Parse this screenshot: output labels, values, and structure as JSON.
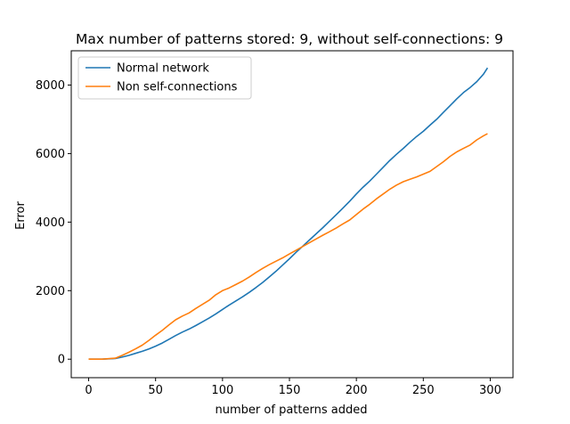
{
  "chart_data": {
    "type": "line",
    "title": "Max number of patterns stored: 9, without self-connections: 9",
    "xlabel": "number of patterns added",
    "ylabel": "Error",
    "xlim": [
      -13,
      317
    ],
    "ylim": [
      -540,
      9000
    ],
    "xticks": [
      0,
      50,
      100,
      150,
      200,
      250,
      300
    ],
    "yticks": [
      0,
      2000,
      4000,
      6000,
      8000
    ],
    "grid": false,
    "legend_position": "top-left",
    "series": [
      {
        "name": "Normal network",
        "color": "#1f77b4",
        "points": [
          [
            0,
            0
          ],
          [
            10,
            0
          ],
          [
            20,
            20
          ],
          [
            25,
            60
          ],
          [
            30,
            110
          ],
          [
            35,
            170
          ],
          [
            40,
            230
          ],
          [
            45,
            300
          ],
          [
            50,
            380
          ],
          [
            55,
            470
          ],
          [
            60,
            580
          ],
          [
            65,
            690
          ],
          [
            70,
            790
          ],
          [
            75,
            880
          ],
          [
            80,
            980
          ],
          [
            85,
            1090
          ],
          [
            90,
            1200
          ],
          [
            95,
            1320
          ],
          [
            100,
            1450
          ],
          [
            105,
            1580
          ],
          [
            110,
            1700
          ],
          [
            115,
            1820
          ],
          [
            120,
            1950
          ],
          [
            125,
            2090
          ],
          [
            130,
            2240
          ],
          [
            135,
            2400
          ],
          [
            140,
            2570
          ],
          [
            145,
            2750
          ],
          [
            150,
            2930
          ],
          [
            155,
            3120
          ],
          [
            160,
            3300
          ],
          [
            165,
            3480
          ],
          [
            170,
            3660
          ],
          [
            175,
            3840
          ],
          [
            180,
            4030
          ],
          [
            185,
            4220
          ],
          [
            190,
            4410
          ],
          [
            195,
            4610
          ],
          [
            200,
            4820
          ],
          [
            205,
            5020
          ],
          [
            210,
            5200
          ],
          [
            215,
            5400
          ],
          [
            220,
            5600
          ],
          [
            225,
            5800
          ],
          [
            230,
            5980
          ],
          [
            235,
            6150
          ],
          [
            240,
            6330
          ],
          [
            245,
            6500
          ],
          [
            250,
            6650
          ],
          [
            255,
            6830
          ],
          [
            260,
            7000
          ],
          [
            265,
            7200
          ],
          [
            270,
            7400
          ],
          [
            275,
            7600
          ],
          [
            280,
            7780
          ],
          [
            285,
            7930
          ],
          [
            290,
            8100
          ],
          [
            295,
            8320
          ],
          [
            298,
            8500
          ]
        ]
      },
      {
        "name": "Non self-connections",
        "color": "#ff7f0e",
        "points": [
          [
            0,
            0
          ],
          [
            10,
            0
          ],
          [
            20,
            30
          ],
          [
            25,
            110
          ],
          [
            30,
            200
          ],
          [
            35,
            300
          ],
          [
            40,
            410
          ],
          [
            45,
            550
          ],
          [
            50,
            700
          ],
          [
            55,
            840
          ],
          [
            60,
            1000
          ],
          [
            65,
            1150
          ],
          [
            70,
            1260
          ],
          [
            75,
            1350
          ],
          [
            80,
            1480
          ],
          [
            85,
            1600
          ],
          [
            90,
            1720
          ],
          [
            95,
            1880
          ],
          [
            100,
            2000
          ],
          [
            105,
            2080
          ],
          [
            110,
            2180
          ],
          [
            115,
            2280
          ],
          [
            120,
            2400
          ],
          [
            125,
            2530
          ],
          [
            130,
            2650
          ],
          [
            135,
            2760
          ],
          [
            140,
            2860
          ],
          [
            145,
            2960
          ],
          [
            150,
            3070
          ],
          [
            155,
            3180
          ],
          [
            160,
            3290
          ],
          [
            165,
            3400
          ],
          [
            170,
            3510
          ],
          [
            175,
            3620
          ],
          [
            180,
            3720
          ],
          [
            185,
            3830
          ],
          [
            190,
            3950
          ],
          [
            195,
            4060
          ],
          [
            200,
            4220
          ],
          [
            205,
            4380
          ],
          [
            210,
            4520
          ],
          [
            215,
            4680
          ],
          [
            220,
            4820
          ],
          [
            225,
            4960
          ],
          [
            230,
            5080
          ],
          [
            235,
            5180
          ],
          [
            240,
            5250
          ],
          [
            245,
            5320
          ],
          [
            250,
            5400
          ],
          [
            255,
            5480
          ],
          [
            260,
            5620
          ],
          [
            265,
            5760
          ],
          [
            270,
            5920
          ],
          [
            275,
            6050
          ],
          [
            280,
            6150
          ],
          [
            285,
            6250
          ],
          [
            290,
            6400
          ],
          [
            295,
            6520
          ],
          [
            298,
            6580
          ]
        ]
      }
    ]
  }
}
